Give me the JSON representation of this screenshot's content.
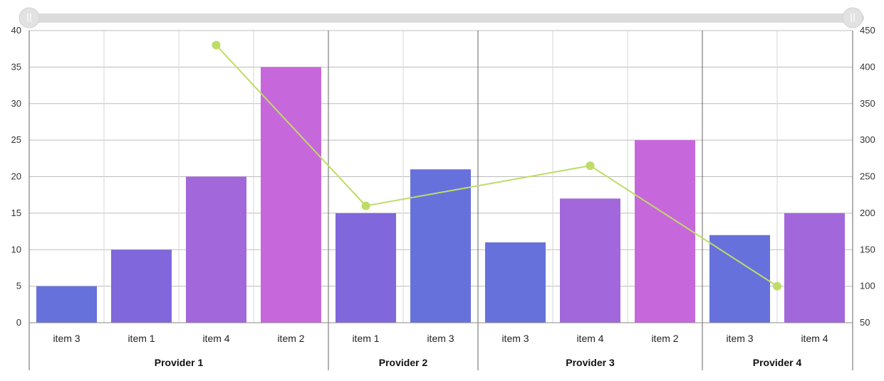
{
  "chart_data": {
    "type": "bar",
    "title": "",
    "xlabel": "",
    "ylabel": "",
    "ylim": [
      0,
      40
    ],
    "y2lim": [
      50,
      450
    ],
    "y_ticks": [
      "0",
      "5",
      "10",
      "15",
      "20",
      "25",
      "30",
      "35",
      "40"
    ],
    "y2_ticks": [
      "50",
      "100",
      "150",
      "200",
      "250",
      "300",
      "350",
      "400",
      "450"
    ],
    "grid": true,
    "scrollbar": true,
    "groups": [
      {
        "label": "Provider 1",
        "items": [
          {
            "label": "item 3",
            "value": 5,
            "color": "#6771dc"
          },
          {
            "label": "item 1",
            "value": 10,
            "color": "#8067dc"
          },
          {
            "label": "item 4",
            "value": 20,
            "color": "#a367dc"
          },
          {
            "label": "item 2",
            "value": 35,
            "color": "#c767dc"
          }
        ],
        "line_value": 430,
        "line_anchor_item": 2
      },
      {
        "label": "Provider 2",
        "items": [
          {
            "label": "item 1",
            "value": 15,
            "color": "#8067dc"
          },
          {
            "label": "item 3",
            "value": 21,
            "color": "#6771dc"
          }
        ],
        "line_value": 210,
        "line_anchor_item": 0
      },
      {
        "label": "Provider 3",
        "items": [
          {
            "label": "item 3",
            "value": 11,
            "color": "#6771dc"
          },
          {
            "label": "item 4",
            "value": 17,
            "color": "#a367dc"
          },
          {
            "label": "item 2",
            "value": 25,
            "color": "#c767dc"
          }
        ],
        "line_value": 265,
        "line_anchor_item": 1
      },
      {
        "label": "Provider 4",
        "items": [
          {
            "label": "item 3",
            "value": 12,
            "color": "#6771dc"
          },
          {
            "label": "item 4",
            "value": 15,
            "color": "#a367dc"
          }
        ],
        "line_value": 100,
        "line_anchor_item": 0.5
      }
    ],
    "line_color": "#bedc67"
  }
}
